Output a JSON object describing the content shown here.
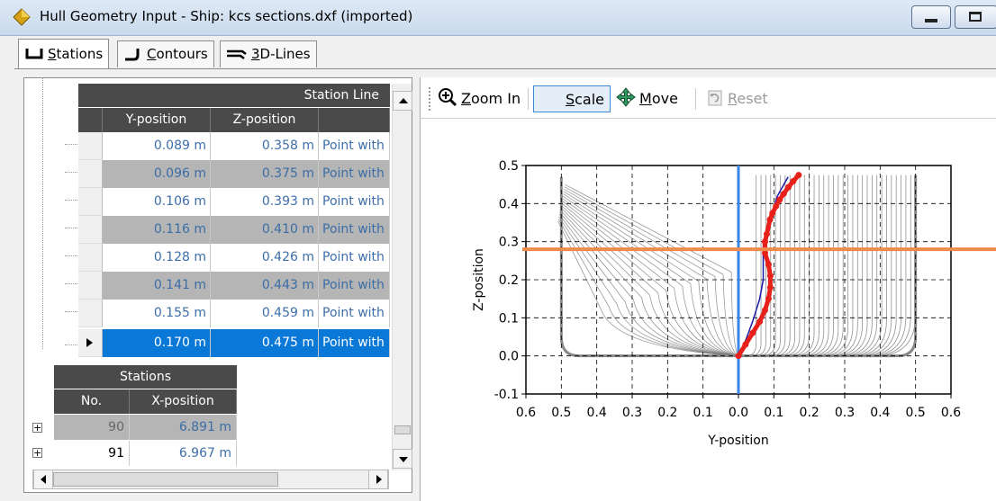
{
  "window": {
    "title": "Hull Geometry Input - Ship: kcs sections.dxf (imported)"
  },
  "tabs": [
    {
      "label": "Stations",
      "icon": "station-icon",
      "active": true
    },
    {
      "label": "Contours",
      "icon": "contour-icon",
      "active": false
    },
    {
      "label": "3D-Lines",
      "icon": "3d-lines-icon",
      "active": false
    }
  ],
  "station_line": {
    "title": "Station Line",
    "columns": [
      "Y-position",
      "Z-position",
      ""
    ],
    "rows": [
      {
        "y": "0.089 m",
        "z": "0.358 m",
        "type": "Point with"
      },
      {
        "y": "0.096 m",
        "z": "0.375 m",
        "type": "Point with"
      },
      {
        "y": "0.106 m",
        "z": "0.393 m",
        "type": "Point with"
      },
      {
        "y": "0.116 m",
        "z": "0.410 m",
        "type": "Point with"
      },
      {
        "y": "0.128 m",
        "z": "0.426 m",
        "type": "Point with"
      },
      {
        "y": "0.141 m",
        "z": "0.443 m",
        "type": "Point with"
      },
      {
        "y": "0.155 m",
        "z": "0.459 m",
        "type": "Point with"
      },
      {
        "y": "0.170 m",
        "z": "0.475 m",
        "type": "Point with",
        "selected": true
      }
    ]
  },
  "stations": {
    "title": "Stations",
    "columns": [
      "No.",
      "X-position"
    ],
    "rows": [
      {
        "no": "90",
        "x": "6.891 m"
      },
      {
        "no": "91",
        "x": "6.967 m"
      }
    ]
  },
  "toolbar": {
    "zoom_in": "Zoom In",
    "scale": "Scale",
    "move": "Move",
    "reset": "Reset"
  },
  "chart_data": {
    "type": "line",
    "xlabel": "Y-position",
    "ylabel": "Z-position",
    "x_tick_labels": [
      "0.6",
      "0.5",
      "0.4",
      "0.3",
      "0.2",
      "0.1",
      "0.0",
      "0.1",
      "0.2",
      "0.3",
      "0.4",
      "0.5",
      "0.6"
    ],
    "y_tick_labels": [
      "0.5",
      "0.4",
      "0.3",
      "0.2",
      "0.1",
      "0.0",
      "-0.1"
    ],
    "xlim": [
      -0.6,
      0.6
    ],
    "ylim": [
      -0.1,
      0.5
    ],
    "grid": true,
    "horizontal_line": {
      "z": 0.28,
      "color": "#f08a4b"
    },
    "vertical_line": {
      "y": 0.0,
      "color": "#3a86e8"
    },
    "selected_station": {
      "color": "#e8201a",
      "points": [
        [
          0.0,
          0.0
        ],
        [
          0.02,
          0.03
        ],
        [
          0.04,
          0.06
        ],
        [
          0.06,
          0.09
        ],
        [
          0.075,
          0.12
        ],
        [
          0.085,
          0.15
        ],
        [
          0.09,
          0.18
        ],
        [
          0.09,
          0.21
        ],
        [
          0.085,
          0.24
        ],
        [
          0.075,
          0.27
        ],
        [
          0.075,
          0.3
        ],
        [
          0.08,
          0.32
        ],
        [
          0.089,
          0.358
        ],
        [
          0.096,
          0.375
        ],
        [
          0.106,
          0.393
        ],
        [
          0.116,
          0.41
        ],
        [
          0.128,
          0.426
        ],
        [
          0.141,
          0.443
        ],
        [
          0.155,
          0.459
        ],
        [
          0.17,
          0.475
        ]
      ]
    },
    "blue_station": {
      "color": "#1a1aa8",
      "points": [
        [
          0.0,
          0.0
        ],
        [
          0.02,
          0.04
        ],
        [
          0.04,
          0.09
        ],
        [
          0.06,
          0.15
        ],
        [
          0.07,
          0.2
        ],
        [
          0.07,
          0.25
        ],
        [
          0.07,
          0.3
        ],
        [
          0.09,
          0.36
        ],
        [
          0.11,
          0.42
        ],
        [
          0.14,
          0.47
        ]
      ]
    },
    "hull_line_color": "#777777"
  }
}
